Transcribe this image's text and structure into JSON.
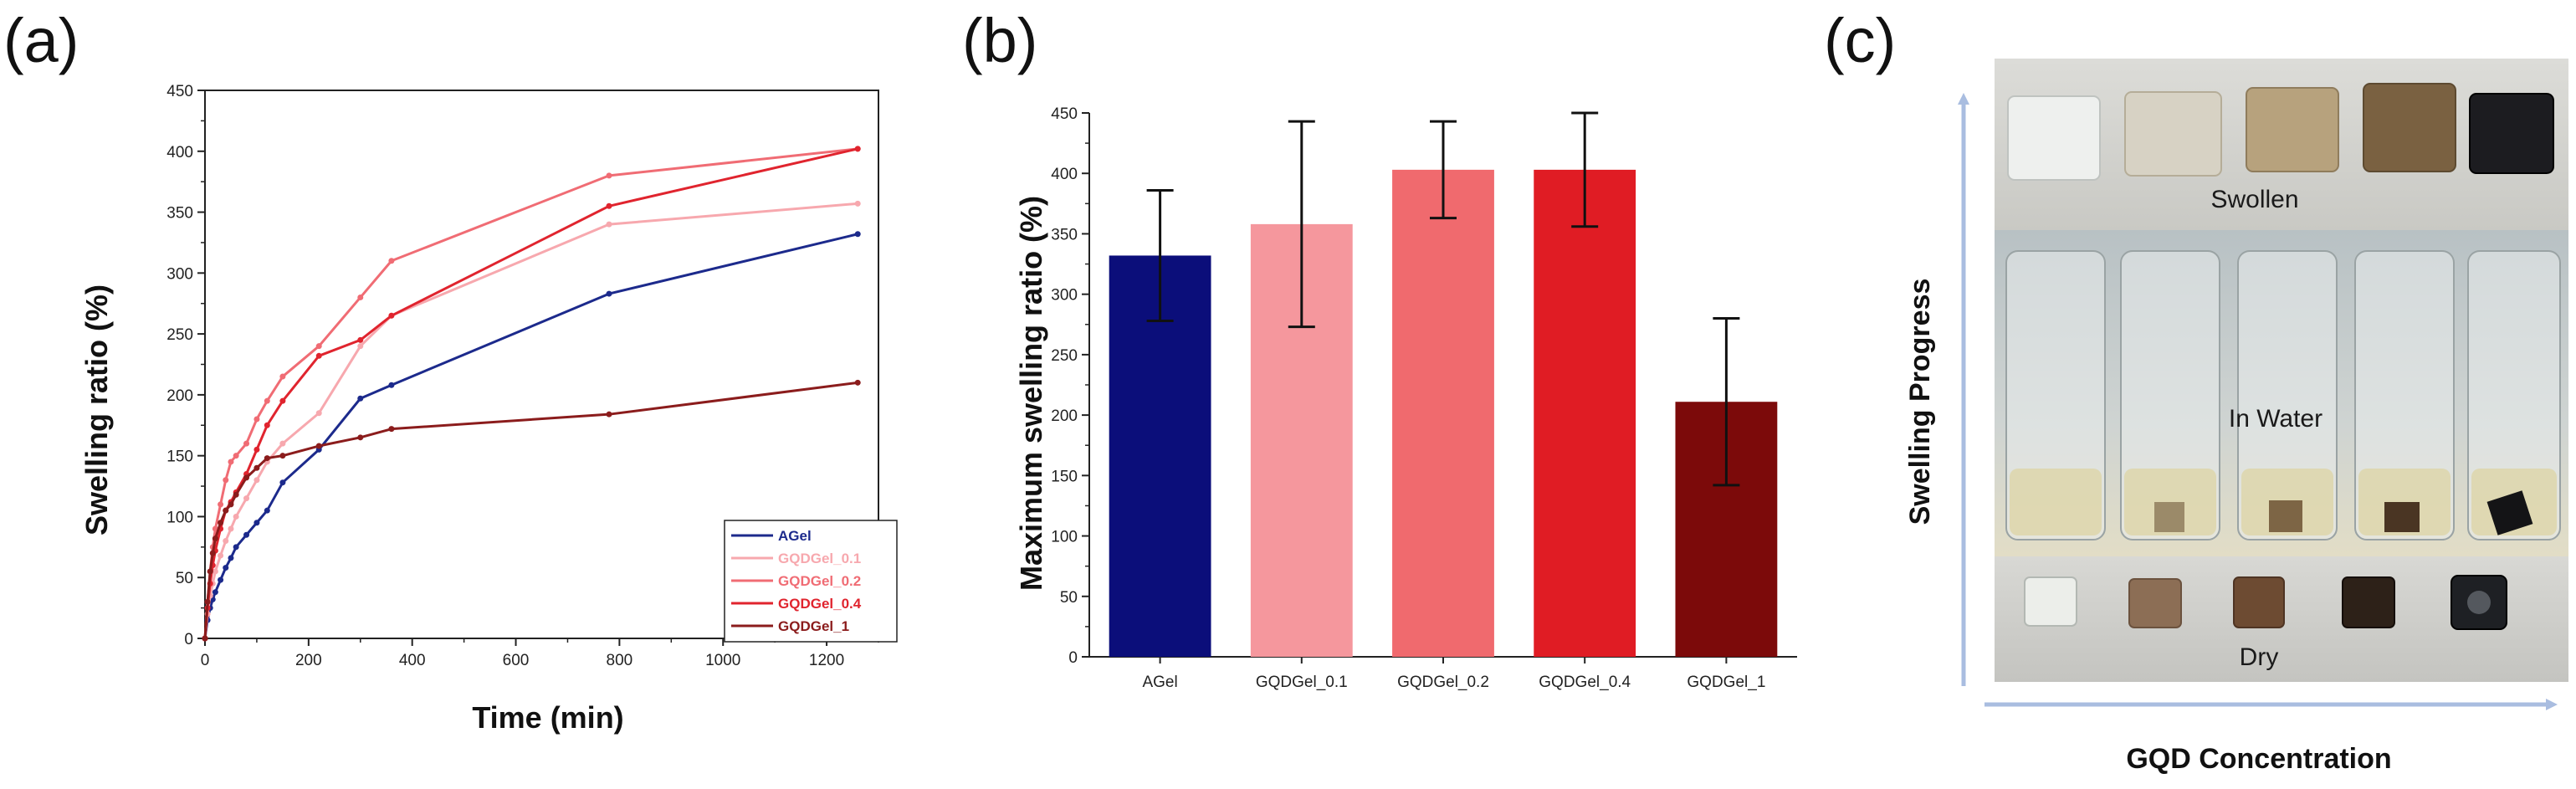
{
  "panels": {
    "a": "(a)",
    "b": "(b)",
    "c": "(c)"
  },
  "chart_data": [
    {
      "type": "line",
      "panel": "(a)",
      "title": "",
      "xlabel": "Time (min)",
      "ylabel": "Swelling ratio (%)",
      "xlim": [
        0,
        1300
      ],
      "ylim": [
        0,
        450
      ],
      "xticks": [
        0,
        200,
        400,
        600,
        800,
        1000,
        1200
      ],
      "yticks": [
        0,
        50,
        100,
        150,
        200,
        250,
        300,
        350,
        400,
        450
      ],
      "legend_position": "bottom-right",
      "series": [
        {
          "name": "AGel",
          "color": "#1c2a8c",
          "x": [
            0,
            5,
            10,
            15,
            20,
            30,
            40,
            50,
            60,
            80,
            100,
            120,
            150,
            220,
            300,
            360,
            780,
            1260
          ],
          "y": [
            0,
            15,
            25,
            32,
            38,
            48,
            58,
            66,
            75,
            85,
            95,
            105,
            128,
            155,
            197,
            208,
            283,
            332
          ]
        },
        {
          "name": "GQDGel_0.1",
          "color": "#f7a8ae",
          "x": [
            0,
            5,
            10,
            15,
            20,
            30,
            40,
            50,
            60,
            80,
            100,
            120,
            150,
            220,
            300,
            360,
            780,
            1260
          ],
          "y": [
            0,
            20,
            35,
            45,
            55,
            68,
            80,
            90,
            100,
            115,
            130,
            145,
            160,
            185,
            240,
            265,
            340,
            357
          ]
        },
        {
          "name": "GQDGel_0.2",
          "color": "#f06c74",
          "x": [
            0,
            5,
            10,
            15,
            20,
            30,
            40,
            50,
            60,
            80,
            100,
            120,
            150,
            220,
            300,
            360,
            780,
            1260
          ],
          "y": [
            0,
            30,
            55,
            75,
            90,
            110,
            130,
            145,
            150,
            160,
            180,
            195,
            215,
            240,
            280,
            310,
            380,
            402
          ]
        },
        {
          "name": "GQDGel_0.4",
          "color": "#e0242e",
          "x": [
            0,
            5,
            10,
            15,
            20,
            30,
            40,
            50,
            60,
            80,
            100,
            120,
            150,
            220,
            300,
            360,
            780,
            1260
          ],
          "y": [
            0,
            25,
            45,
            60,
            72,
            90,
            105,
            112,
            120,
            135,
            155,
            175,
            195,
            232,
            245,
            265,
            355,
            402
          ]
        },
        {
          "name": "GQDGel_1",
          "color": "#8b1c1c",
          "x": [
            0,
            5,
            10,
            15,
            20,
            30,
            40,
            50,
            60,
            80,
            100,
            120,
            150,
            220,
            300,
            360,
            780,
            1260
          ],
          "y": [
            0,
            30,
            55,
            70,
            82,
            95,
            105,
            110,
            118,
            132,
            140,
            148,
            150,
            158,
            165,
            172,
            184,
            210
          ]
        }
      ]
    },
    {
      "type": "bar",
      "panel": "(b)",
      "title": "",
      "xlabel": "",
      "ylabel": "Maximum swelling ratio (%)",
      "ylim": [
        0,
        450
      ],
      "yticks": [
        0,
        50,
        100,
        150,
        200,
        250,
        300,
        350,
        400,
        450
      ],
      "categories": [
        "AGel",
        "GQDGel_0.1",
        "GQDGel_0.2",
        "GQDGel_0.4",
        "GQDGel_1"
      ],
      "values": [
        332,
        358,
        403,
        403,
        211
      ],
      "errors": [
        54,
        85,
        40,
        47,
        69
      ],
      "colors": [
        "#0b0e7a",
        "#f5979d",
        "#f06a6e",
        "#e01c24",
        "#7c0a0a"
      ]
    }
  ],
  "photo": {
    "y_axis_label": "Swelling Progress",
    "x_axis_label": "GQD Concentration",
    "row_labels": {
      "swollen": "Swollen",
      "water": "In Water",
      "dry": "Dry"
    }
  }
}
